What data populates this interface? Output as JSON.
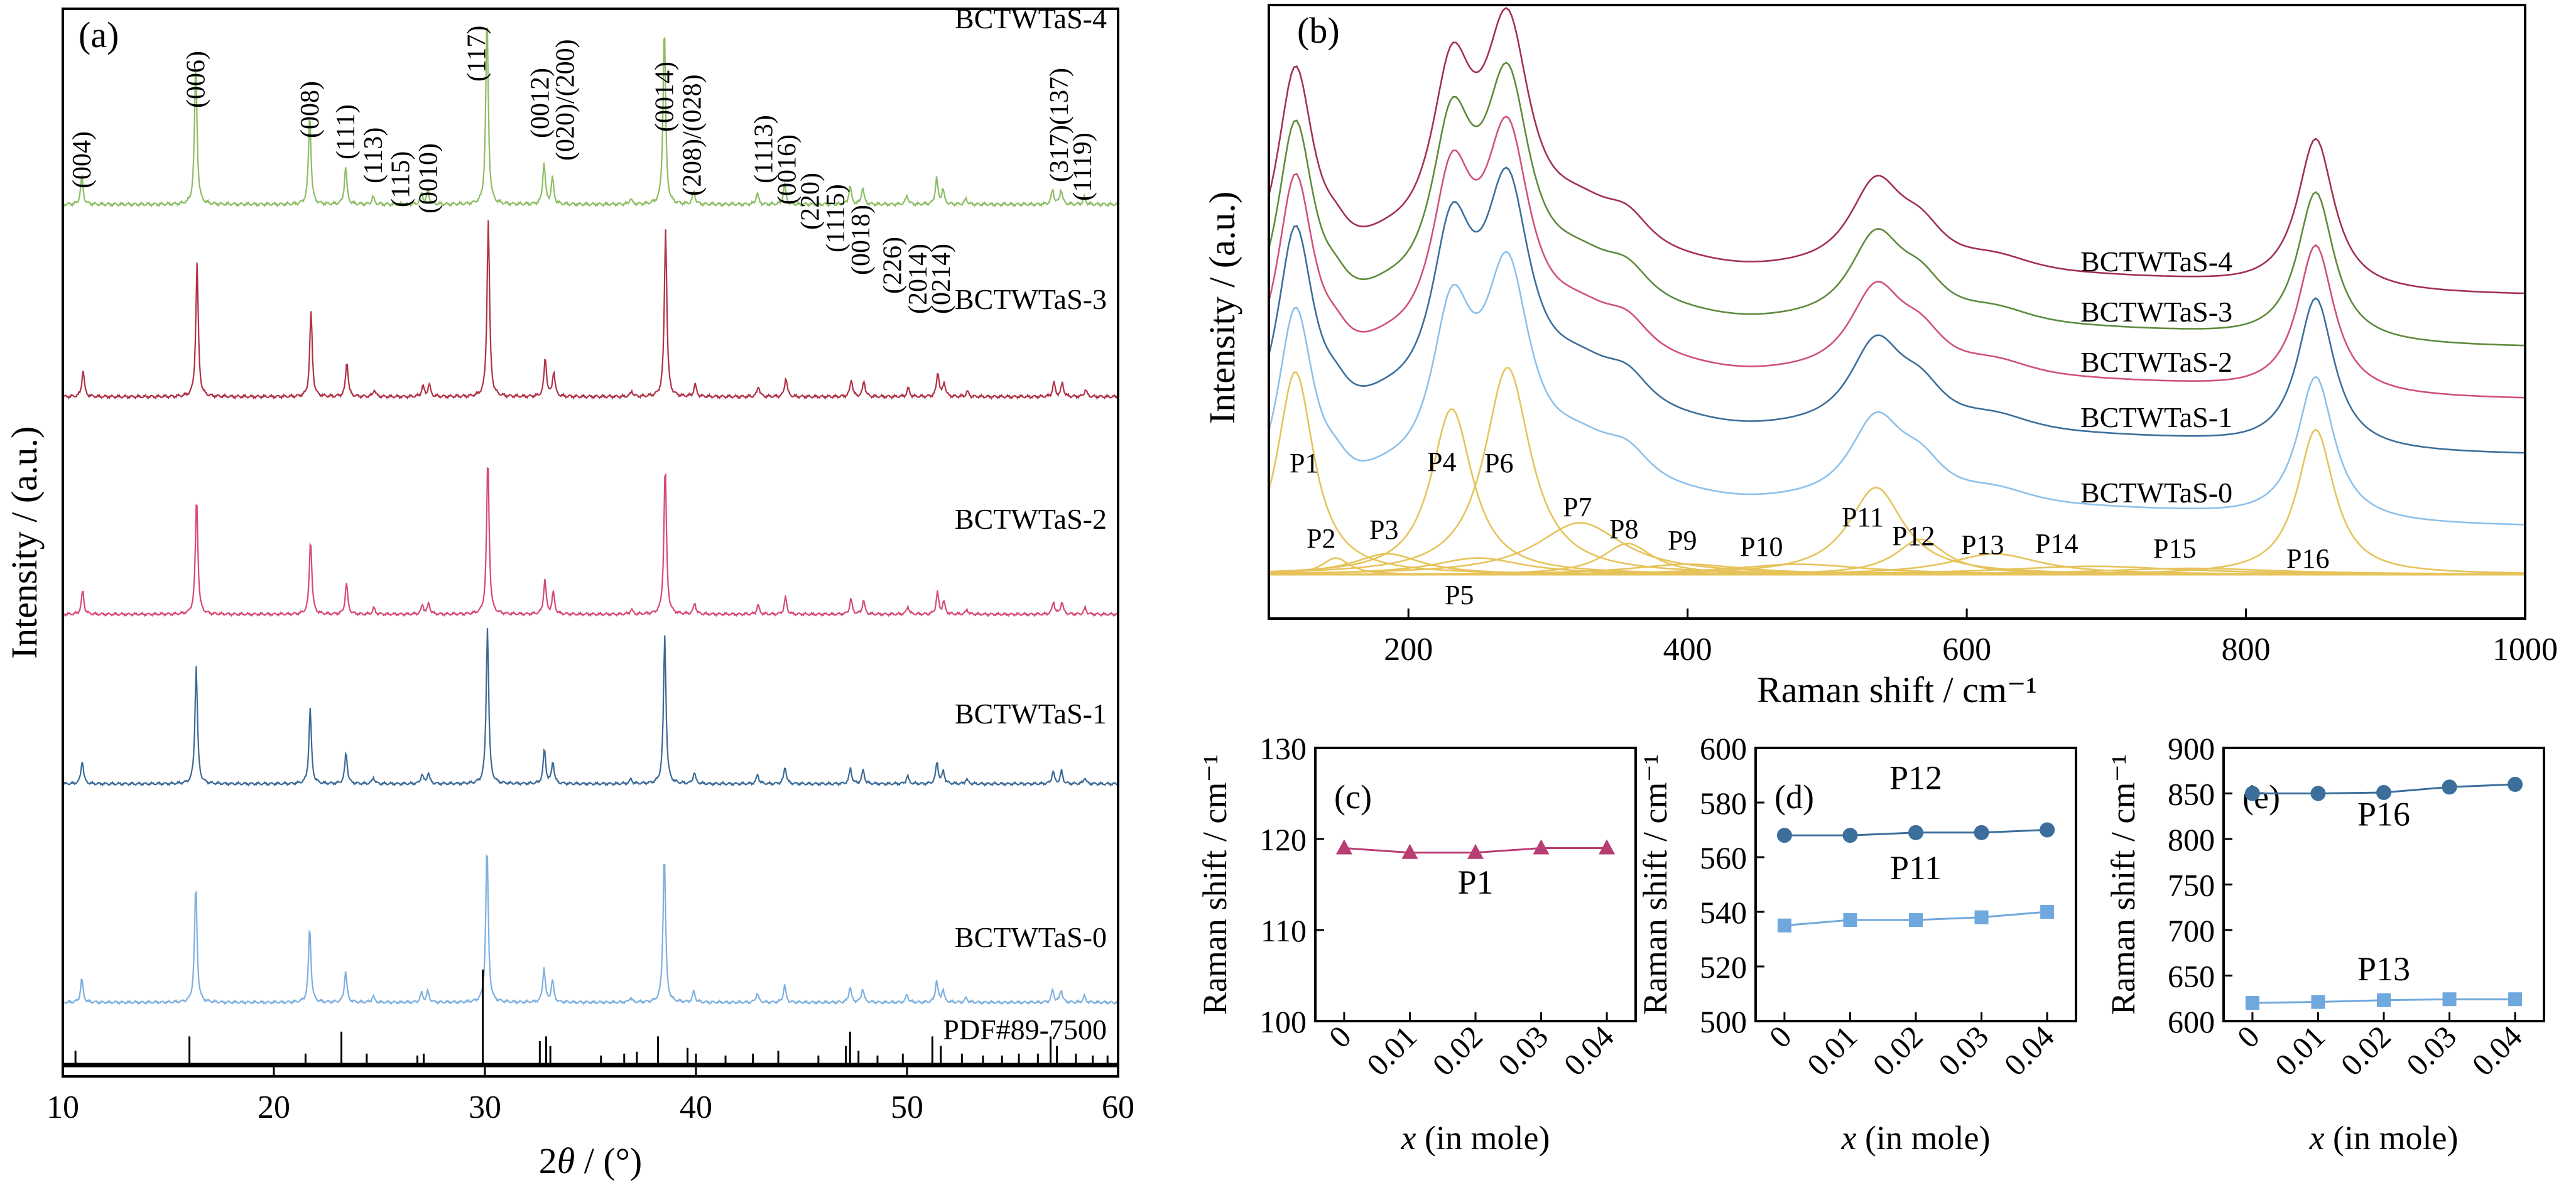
{
  "colors": {
    "xrd_sample_colors": [
      "#7db0e0",
      "#3a6a96",
      "#d64a72",
      "#b03045",
      "#8cbd63"
    ],
    "raman_sample_colors": [
      "#8cc0ea",
      "#3b6e9b",
      "#d0507a",
      "#5e8a3c",
      "#a3304e"
    ],
    "fit_peak_color": "#e6c35a",
    "p1_marker": "#b83d72",
    "upper_marker": "#3b6e9b",
    "lower_marker": "#6fa8dc"
  },
  "chart_data": [
    {
      "panel_label": "(a)",
      "type": "line",
      "xlabel_prefix": "2",
      "xlabel_theta": "θ",
      "xlabel_suffix": " / (°)",
      "ylabel": "Intensity / (a.u.)",
      "xlim": [
        10,
        60
      ],
      "x_ticks": [
        "10",
        "20",
        "30",
        "40",
        "50",
        "60"
      ],
      "y_ticks": [],
      "series": [
        {
          "name": "BCTWTaS-0"
        },
        {
          "name": "BCTWTaS-1"
        },
        {
          "name": "BCTWTaS-2"
        },
        {
          "name": "BCTWTaS-3"
        },
        {
          "name": "BCTWTaS-4"
        }
      ],
      "reference_label": "PDF#89-7500",
      "peaks": [
        {
          "two_theta": 10.9,
          "intensity": 0.15
        },
        {
          "two_theta": 16.3,
          "intensity": 0.75
        },
        {
          "two_theta": 21.7,
          "intensity": 0.48
        },
        {
          "two_theta": 23.4,
          "intensity": 0.2
        },
        {
          "two_theta": 24.7,
          "intensity": 0.04
        },
        {
          "two_theta": 27.0,
          "intensity": 0.06
        },
        {
          "two_theta": 27.3,
          "intensity": 0.07
        },
        {
          "two_theta": 30.1,
          "intensity": 1.0
        },
        {
          "two_theta": 32.8,
          "intensity": 0.22
        },
        {
          "two_theta": 33.2,
          "intensity": 0.14
        },
        {
          "two_theta": 36.9,
          "intensity": 0.03
        },
        {
          "two_theta": 38.5,
          "intensity": 0.95
        },
        {
          "two_theta": 39.9,
          "intensity": 0.07
        },
        {
          "two_theta": 42.9,
          "intensity": 0.06
        },
        {
          "two_theta": 44.2,
          "intensity": 0.11
        },
        {
          "two_theta": 47.3,
          "intensity": 0.1
        },
        {
          "two_theta": 47.9,
          "intensity": 0.09
        },
        {
          "two_theta": 50.0,
          "intensity": 0.05
        },
        {
          "two_theta": 51.4,
          "intensity": 0.14
        },
        {
          "two_theta": 51.7,
          "intensity": 0.08
        },
        {
          "two_theta": 52.8,
          "intensity": 0.03
        },
        {
          "two_theta": 56.9,
          "intensity": 0.08
        },
        {
          "two_theta": 57.3,
          "intensity": 0.08
        },
        {
          "two_theta": 58.4,
          "intensity": 0.04
        }
      ],
      "reference_lines": [
        {
          "two_theta": 10.6,
          "height": 0.15
        },
        {
          "two_theta": 16.0,
          "height": 0.3
        },
        {
          "two_theta": 21.5,
          "height": 0.12
        },
        {
          "two_theta": 23.2,
          "height": 0.35
        },
        {
          "two_theta": 24.4,
          "height": 0.12
        },
        {
          "two_theta": 26.8,
          "height": 0.1
        },
        {
          "two_theta": 27.1,
          "height": 0.12
        },
        {
          "two_theta": 29.9,
          "height": 1.0
        },
        {
          "two_theta": 32.6,
          "height": 0.25
        },
        {
          "two_theta": 32.9,
          "height": 0.3
        },
        {
          "two_theta": 33.1,
          "height": 0.2
        },
        {
          "two_theta": 35.5,
          "height": 0.1
        },
        {
          "two_theta": 36.6,
          "height": 0.12
        },
        {
          "two_theta": 37.2,
          "height": 0.14
        },
        {
          "two_theta": 38.2,
          "height": 0.3
        },
        {
          "two_theta": 39.6,
          "height": 0.18
        },
        {
          "two_theta": 40.0,
          "height": 0.12
        },
        {
          "two_theta": 41.4,
          "height": 0.1
        },
        {
          "two_theta": 42.7,
          "height": 0.12
        },
        {
          "two_theta": 43.9,
          "height": 0.15
        },
        {
          "two_theta": 45.8,
          "height": 0.1
        },
        {
          "two_theta": 47.1,
          "height": 0.2
        },
        {
          "two_theta": 47.3,
          "height": 0.35
        },
        {
          "two_theta": 47.7,
          "height": 0.15
        },
        {
          "two_theta": 48.6,
          "height": 0.1
        },
        {
          "two_theta": 49.8,
          "height": 0.12
        },
        {
          "two_theta": 51.2,
          "height": 0.3
        },
        {
          "two_theta": 51.6,
          "height": 0.2
        },
        {
          "two_theta": 52.6,
          "height": 0.12
        },
        {
          "two_theta": 53.6,
          "height": 0.1
        },
        {
          "two_theta": 54.5,
          "height": 0.1
        },
        {
          "two_theta": 55.3,
          "height": 0.12
        },
        {
          "two_theta": 56.2,
          "height": 0.12
        },
        {
          "two_theta": 56.8,
          "height": 0.3
        },
        {
          "two_theta": 57.1,
          "height": 0.2
        },
        {
          "two_theta": 58.0,
          "height": 0.12
        },
        {
          "two_theta": 58.8,
          "height": 0.1
        },
        {
          "two_theta": 59.5,
          "height": 0.1
        }
      ],
      "annotations": [
        {
          "text": "(004)",
          "x": 10.9
        },
        {
          "text": "(006)",
          "x": 16.3
        },
        {
          "text": "(008)",
          "x": 21.7
        },
        {
          "text": "(111)",
          "x": 23.4
        },
        {
          "text": "(113)",
          "x": 24.7
        },
        {
          "text": "(115)",
          "x": 26.0
        },
        {
          "text": "(0010)",
          "x": 27.3
        },
        {
          "text": "(117)",
          "x": 29.6
        },
        {
          "text": "(0012)",
          "x": 32.6
        },
        {
          "text": "(020)/(200)",
          "x": 33.8
        },
        {
          "text": "(0014)",
          "x": 38.5
        },
        {
          "text": "(208)/(028)",
          "x": 39.8
        },
        {
          "text": "(1113)",
          "x": 43.2
        },
        {
          "text": "(0016)",
          "x": 44.3
        },
        {
          "text": "(220)",
          "x": 45.4
        },
        {
          "text": "(1115)",
          "x": 46.6
        },
        {
          "text": "(0018)",
          "x": 47.8
        },
        {
          "text": "(226)",
          "x": 49.3
        },
        {
          "text": "(2014)",
          "x": 50.5
        },
        {
          "text": "(0214)",
          "x": 51.6
        },
        {
          "text": "(317)(137)",
          "x": 57.2
        },
        {
          "text": "(1119)",
          "x": 58.3
        }
      ]
    },
    {
      "panel_label": "(b)",
      "type": "line",
      "xlabel": "Raman shift / cm⁻¹",
      "ylabel": "Intensity / (a.u.)",
      "xlim": [
        100,
        1000
      ],
      "x_ticks": [
        "200",
        "400",
        "600",
        "800",
        "1000"
      ],
      "y_ticks": [],
      "series": [
        {
          "name": "BCTWTaS-0"
        },
        {
          "name": "BCTWTaS-1"
        },
        {
          "name": "BCTWTaS-2"
        },
        {
          "name": "BCTWTaS-3"
        },
        {
          "name": "BCTWTaS-4"
        }
      ],
      "fit_peaks": [
        {
          "label": "P1",
          "center": 119,
          "height": 0.98,
          "width": 16
        },
        {
          "label": "P2",
          "center": 148,
          "height": 0.08,
          "width": 12
        },
        {
          "label": "P3",
          "center": 185,
          "height": 0.1,
          "width": 30
        },
        {
          "label": "P4",
          "center": 231,
          "height": 0.8,
          "width": 18
        },
        {
          "label": "P5",
          "center": 250,
          "height": 0.08,
          "width": 40
        },
        {
          "label": "P6",
          "center": 271,
          "height": 1.0,
          "width": 20
        },
        {
          "label": "P7",
          "center": 323,
          "height": 0.25,
          "width": 38
        },
        {
          "label": "P8",
          "center": 357,
          "height": 0.15,
          "width": 22
        },
        {
          "label": "P9",
          "center": 400,
          "height": 0.05,
          "width": 50
        },
        {
          "label": "P10",
          "center": 480,
          "height": 0.05,
          "width": 60
        },
        {
          "label": "P11",
          "center": 535,
          "height": 0.42,
          "width": 24
        },
        {
          "label": "P12",
          "center": 567,
          "height": 0.17,
          "width": 22
        },
        {
          "label": "P13",
          "center": 620,
          "height": 0.1,
          "width": 40
        },
        {
          "label": "P14",
          "center": 690,
          "height": 0.04,
          "width": 80
        },
        {
          "label": "P15",
          "center": 760,
          "height": 0.03,
          "width": 80
        },
        {
          "label": "P16",
          "center": 850,
          "height": 0.7,
          "width": 16
        }
      ]
    },
    {
      "panel_label": "(c)",
      "type": "scatter",
      "xlabel_var": "x",
      "xlabel_rest": " (in mole)",
      "ylabel": "Raman shift / cm⁻¹",
      "ylim": [
        100,
        130
      ],
      "y_ticks": [
        "100",
        "110",
        "120",
        "130"
      ],
      "categories": [
        "0",
        "0.01",
        "0.02",
        "0.03",
        "0.04"
      ],
      "series": [
        {
          "name": "P1",
          "values": [
            119.0,
            118.5,
            118.5,
            119.0,
            119.0
          ]
        }
      ]
    },
    {
      "panel_label": "(d)",
      "type": "scatter",
      "xlabel_var": "x",
      "xlabel_rest": " (in mole)",
      "ylabel": "Raman shift / cm⁻¹",
      "ylim": [
        500,
        600
      ],
      "y_ticks": [
        "500",
        "520",
        "540",
        "560",
        "580",
        "600"
      ],
      "categories": [
        "0",
        "0.01",
        "0.02",
        "0.03",
        "0.04"
      ],
      "series": [
        {
          "name": "P12",
          "values": [
            568,
            568,
            569,
            569,
            570
          ]
        },
        {
          "name": "P11",
          "values": [
            535,
            537,
            537,
            538,
            540
          ]
        }
      ]
    },
    {
      "panel_label": "(e)",
      "type": "scatter",
      "xlabel_var": "x",
      "xlabel_rest": " (in mole)",
      "ylabel": "Raman shift / cm⁻¹",
      "ylim": [
        600,
        900
      ],
      "y_ticks": [
        "600",
        "650",
        "700",
        "750",
        "800",
        "850",
        "900"
      ],
      "categories": [
        "0",
        "0.01",
        "0.02",
        "0.03",
        "0.04"
      ],
      "series": [
        {
          "name": "P16",
          "values": [
            850,
            850,
            851,
            857,
            860
          ]
        },
        {
          "name": "P13",
          "values": [
            620,
            621,
            623,
            624,
            624
          ]
        }
      ]
    }
  ]
}
